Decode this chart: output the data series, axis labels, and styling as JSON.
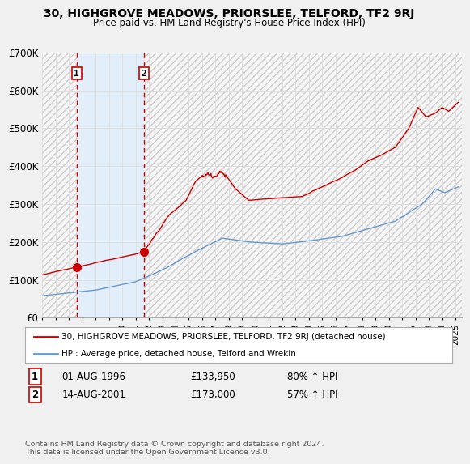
{
  "title": "30, HIGHGROVE MEADOWS, PRIORSLEE, TELFORD, TF2 9RJ",
  "subtitle": "Price paid vs. HM Land Registry's House Price Index (HPI)",
  "ylim": [
    0,
    700000
  ],
  "yticks": [
    0,
    100000,
    200000,
    300000,
    400000,
    500000,
    600000,
    700000
  ],
  "ytick_labels": [
    "£0",
    "£100K",
    "£200K",
    "£300K",
    "£400K",
    "£500K",
    "£600K",
    "£700K"
  ],
  "background_color": "#f0f0f0",
  "plot_bg_color": "#ffffff",
  "legend_label_red": "30, HIGHGROVE MEADOWS, PRIORSLEE, TELFORD, TF2 9RJ (detached house)",
  "legend_label_blue": "HPI: Average price, detached house, Telford and Wrekin",
  "footer": "Contains HM Land Registry data © Crown copyright and database right 2024.\nThis data is licensed under the Open Government Licence v3.0.",
  "sale1_date": "01-AUG-1996",
  "sale1_price": "£133,950",
  "sale1_hpi": "80% ↑ HPI",
  "sale1_x": 1996.583,
  "sale1_y": 133950,
  "sale2_date": "14-AUG-2001",
  "sale2_price": "£173,000",
  "sale2_hpi": "57% ↑ HPI",
  "sale2_x": 2001.617,
  "sale2_y": 173000,
  "red_line_color": "#cc0000",
  "blue_line_color": "#6699cc",
  "dashed_line_color": "#cc0000",
  "xmin": 1994.0,
  "xmax": 2025.5
}
